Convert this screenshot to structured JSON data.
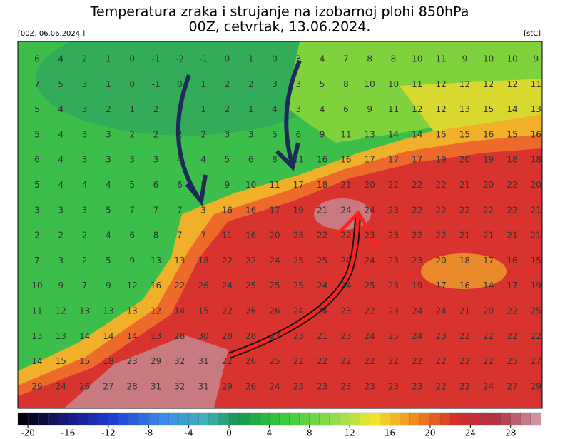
{
  "header": {
    "title": "Temperatura zraka i strujanje na izobarnoj plohi 850hPa",
    "subtitle": "00Z, cetvrtak, 13.06.2024.",
    "run": "[00Z, 06.06.2024.]",
    "unit": "[stC]"
  },
  "map": {
    "grid": [
      [
        6,
        4,
        2,
        1,
        0,
        -1,
        -2,
        -1,
        0,
        1,
        0,
        3,
        4,
        7,
        8,
        8,
        10,
        11,
        9,
        10,
        10,
        9
      ],
      [
        7,
        5,
        3,
        1,
        0,
        -1,
        0,
        1,
        2,
        2,
        3,
        3,
        5,
        8,
        10,
        10,
        11,
        12,
        12,
        12,
        12,
        11
      ],
      [
        5,
        4,
        3,
        2,
        1,
        2,
        2,
        1,
        2,
        1,
        4,
        3,
        4,
        6,
        9,
        11,
        12,
        12,
        13,
        15,
        14,
        13
      ],
      [
        5,
        4,
        3,
        3,
        2,
        2,
        2,
        2,
        3,
        3,
        5,
        6,
        9,
        11,
        13,
        14,
        14,
        15,
        15,
        16,
        15,
        16
      ],
      [
        6,
        4,
        3,
        3,
        3,
        3,
        4,
        4,
        5,
        6,
        8,
        11,
        16,
        16,
        17,
        17,
        17,
        19,
        20,
        19,
        18,
        18
      ],
      [
        5,
        4,
        4,
        4,
        5,
        6,
        6,
        8,
        9,
        10,
        11,
        17,
        18,
        21,
        20,
        22,
        22,
        22,
        21,
        20,
        22,
        20
      ],
      [
        3,
        3,
        3,
        5,
        7,
        7,
        7,
        3,
        16,
        16,
        17,
        19,
        21,
        24,
        24,
        23,
        22,
        22,
        22,
        22,
        22,
        21
      ],
      [
        2,
        2,
        2,
        4,
        6,
        8,
        7,
        7,
        11,
        16,
        20,
        23,
        22,
        22,
        23,
        23,
        22,
        22,
        21,
        21,
        21,
        21
      ],
      [
        7,
        3,
        2,
        5,
        9,
        13,
        13,
        18,
        22,
        22,
        24,
        25,
        25,
        24,
        24,
        23,
        23,
        20,
        18,
        17,
        16,
        15
      ],
      [
        10,
        9,
        7,
        9,
        12,
        16,
        22,
        26,
        24,
        25,
        25,
        25,
        24,
        24,
        25,
        23,
        19,
        17,
        16,
        14,
        17,
        19
      ],
      [
        11,
        12,
        13,
        13,
        13,
        12,
        14,
        15,
        22,
        26,
        26,
        24,
        24,
        23,
        22,
        23,
        24,
        24,
        21,
        20,
        22,
        25
      ],
      [
        13,
        13,
        14,
        14,
        14,
        13,
        28,
        30,
        28,
        28,
        23,
        23,
        21,
        23,
        24,
        25,
        24,
        23,
        22,
        22,
        22,
        22
      ],
      [
        14,
        15,
        15,
        18,
        23,
        29,
        32,
        31,
        22,
        26,
        25,
        22,
        22,
        22,
        22,
        22,
        22,
        22,
        22,
        22,
        25,
        27
      ],
      [
        29,
        24,
        26,
        27,
        28,
        31,
        32,
        31,
        29,
        26,
        24,
        23,
        23,
        23,
        23,
        23,
        23,
        22,
        22,
        24,
        27,
        29
      ]
    ]
  },
  "colorbar": {
    "lim": [
      -21,
      31
    ],
    "ticks": [
      -20,
      -16,
      -12,
      -8,
      -4,
      0,
      4,
      8,
      12,
      16,
      20,
      24,
      28
    ]
  }
}
